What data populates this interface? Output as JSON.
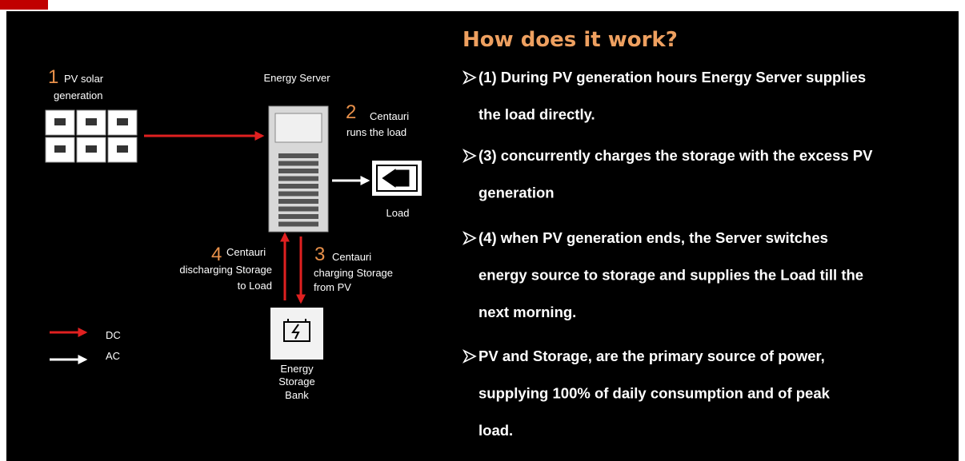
{
  "slide": {
    "title": "How does it work?",
    "bullets": [
      [
        "(1) During PV generation hours Energy Server supplies",
        "the load directly."
      ],
      [
        "(3) concurrently charges the storage with the excess PV",
        "generation"
      ],
      [
        "(4) when PV generation ends, the Server switches",
        "energy source to storage and supplies the Load till the",
        "next morning."
      ],
      [
        "PV and Storage, are the primary source of power,",
        "supplying 100% of daily consumption and of peak",
        "load."
      ]
    ]
  },
  "diagram": {
    "pv": {
      "number": "1",
      "lines": [
        "PV solar",
        "generation"
      ]
    },
    "server": {
      "label": "Energy Server"
    },
    "step2": {
      "number": "2",
      "lines": [
        "Centauri",
        "runs the load"
      ]
    },
    "load": {
      "label": "Load"
    },
    "step4": {
      "number": "4",
      "lines": [
        "Centauri",
        "discharging Storage",
        "to Load"
      ]
    },
    "step3": {
      "number": "3",
      "lines": [
        "Centauri",
        "charging Storage",
        "from PV"
      ]
    },
    "storage": {
      "lines": [
        "Energy",
        "Storage",
        "Bank"
      ]
    },
    "legend": {
      "dc": "DC",
      "ac": "AC"
    }
  }
}
